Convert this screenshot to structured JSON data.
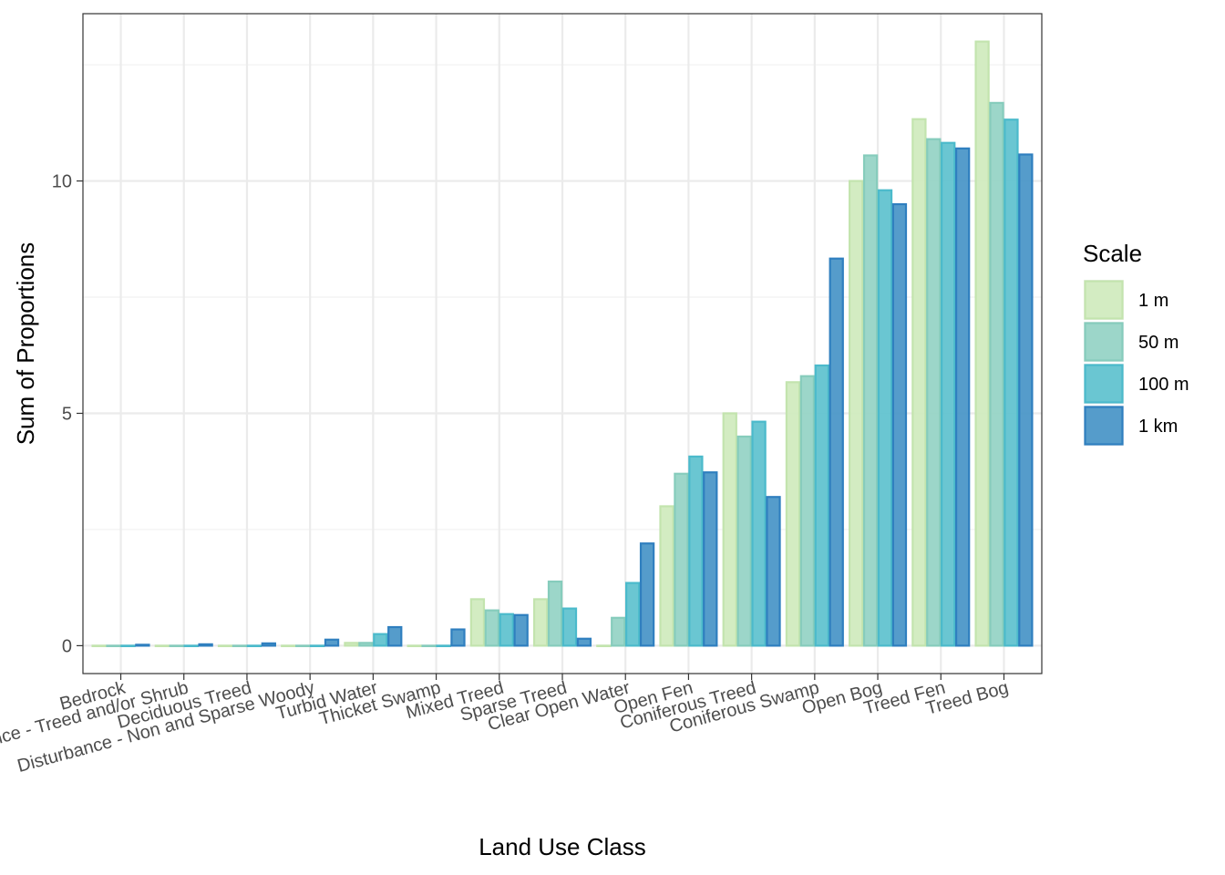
{
  "chart_data": {
    "type": "bar",
    "xlabel": "Land Use Class",
    "ylabel": "Sum of Proportions",
    "ylim": [
      -0.6,
      13.6
    ],
    "yticks": [
      0,
      5,
      10
    ],
    "grid": true,
    "legend_position": "right",
    "legend_title": "Scale",
    "categories": [
      "Bedrock",
      "Disturbance - Treed and/or Shrub",
      "Deciduous Treed",
      "Disturbance - Non and Sparse Woody",
      "Turbid Water",
      "Thicket Swamp",
      "Mixed Treed",
      "Sparse Treed",
      "Clear Open Water",
      "Open Fen",
      "Coniferous Treed",
      "Coniferous Swamp",
      "Open Bog",
      "Treed Fen",
      "Treed Bog"
    ],
    "series": [
      {
        "name": "1 m",
        "color": "#d1ebbf",
        "stroke": "#c3e4ae",
        "values": [
          0,
          0,
          0,
          0,
          0.06,
          0,
          1.0,
          1.0,
          0,
          3.0,
          5.0,
          5.67,
          10.0,
          11.33,
          13.0
        ]
      },
      {
        "name": "50 m",
        "color": "#97d4c6",
        "stroke": "#86ccbc",
        "values": [
          0,
          0,
          0,
          0,
          0.06,
          0,
          0.76,
          1.38,
          0.6,
          3.7,
          4.5,
          5.8,
          10.55,
          10.9,
          11.68
        ]
      },
      {
        "name": "100 m",
        "color": "#62c3d0",
        "stroke": "#4bbacb",
        "values": [
          0,
          0,
          0,
          0,
          0.25,
          0,
          0.68,
          0.8,
          1.35,
          4.07,
          4.82,
          6.03,
          9.8,
          10.82,
          11.32
        ]
      },
      {
        "name": "1 km",
        "color": "#4c97c8",
        "stroke": "#2f7fbf",
        "values": [
          0.02,
          0.03,
          0.05,
          0.13,
          0.4,
          0.35,
          0.66,
          0.15,
          2.2,
          3.73,
          3.2,
          8.33,
          9.5,
          10.7,
          10.57
        ]
      }
    ]
  }
}
